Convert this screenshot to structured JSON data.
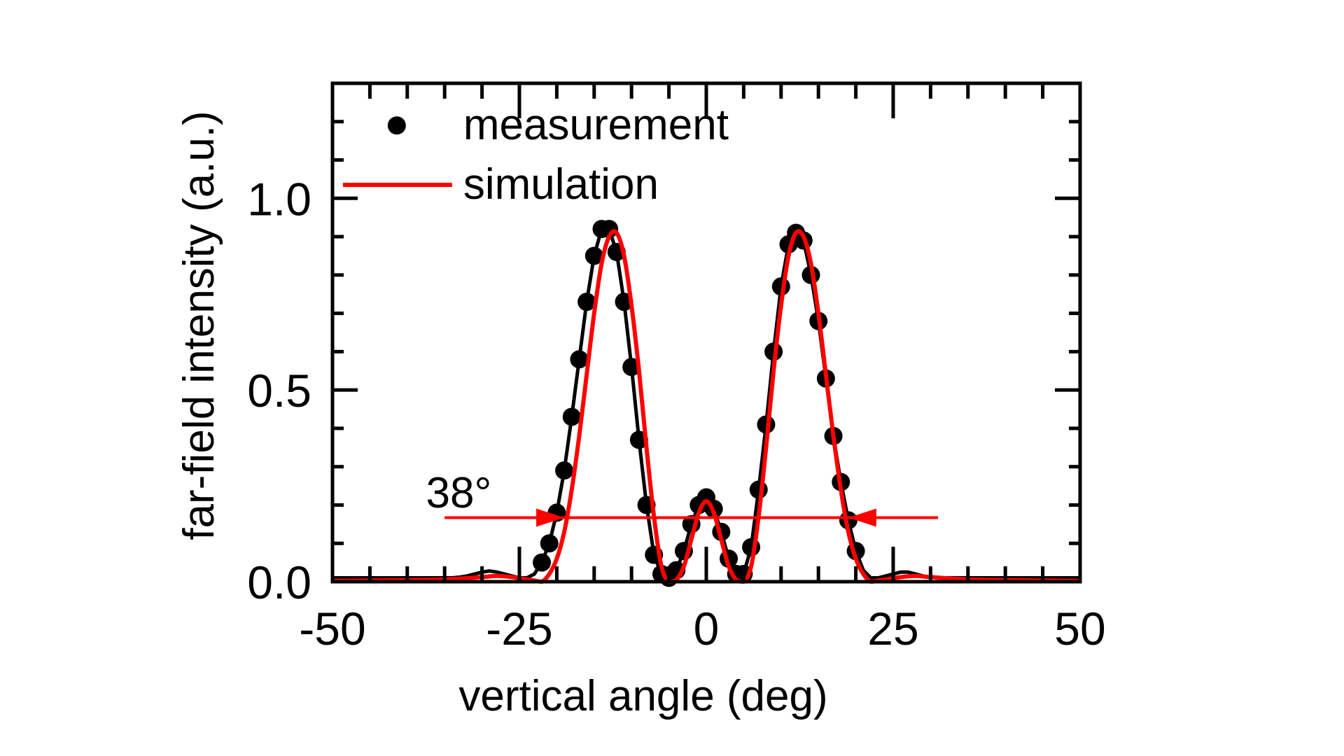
{
  "chart_data": {
    "type": "scatter",
    "xlabel": "vertical angle (deg)",
    "ylabel": "far-field intensity (a.u.)",
    "xlim": [
      -50,
      50
    ],
    "ylim": [
      0,
      1.3
    ],
    "xticks": [
      -50,
      -25,
      0,
      25,
      50
    ],
    "xtick_labels": [
      "-50",
      "-25",
      "0",
      "25",
      "50"
    ],
    "yticks": [
      0,
      0.5,
      1.0
    ],
    "ytick_labels": [
      "0.0",
      "0.5",
      "1.0"
    ],
    "grid": false,
    "legend_placement": "top-left",
    "series": [
      {
        "name": "measurement",
        "style": "markers",
        "color": "#000000",
        "x": [
          -50,
          -49,
          -48,
          -47,
          -46,
          -45,
          -44,
          -43,
          -42,
          -41,
          -40,
          -39,
          -38,
          -37,
          -36,
          -35,
          -34,
          -33,
          -32,
          -31,
          -30,
          -29,
          -28,
          -27,
          -26,
          -25,
          -24,
          -23,
          -22,
          -21,
          -20,
          -19,
          -18,
          -17,
          -16,
          -15,
          -14,
          -13,
          -12,
          -11,
          -10,
          -9,
          -8,
          -7,
          -6,
          -5,
          -4,
          -3,
          -2,
          -1,
          0,
          1,
          2,
          3,
          4,
          5,
          6,
          7,
          8,
          9,
          10,
          11,
          12,
          13,
          14,
          15,
          16,
          17,
          18,
          19,
          20,
          21,
          22,
          23,
          24,
          25,
          26,
          27,
          28,
          29,
          30,
          31,
          32,
          33,
          34,
          35,
          36,
          37,
          38,
          39,
          40,
          41,
          42,
          43,
          44,
          45,
          46,
          47,
          48,
          49,
          50
        ],
        "y": [
          0.01,
          0.01,
          0.01,
          0.01,
          0.01,
          0.01,
          0.01,
          0.01,
          0.01,
          0.01,
          0.01,
          0.01,
          0.01,
          0.01,
          0.01,
          0.01,
          0.01,
          0.012,
          0.015,
          0.02,
          0.025,
          0.028,
          0.025,
          0.02,
          0.015,
          0.01,
          0.01,
          0.02,
          0.05,
          0.1,
          0.18,
          0.29,
          0.43,
          0.58,
          0.73,
          0.85,
          0.92,
          0.92,
          0.86,
          0.73,
          0.56,
          0.37,
          0.2,
          0.07,
          0.02,
          0.01,
          0.03,
          0.08,
          0.15,
          0.2,
          0.22,
          0.19,
          0.13,
          0.06,
          0.02,
          0.02,
          0.09,
          0.24,
          0.41,
          0.6,
          0.77,
          0.88,
          0.91,
          0.89,
          0.8,
          0.68,
          0.53,
          0.38,
          0.26,
          0.16,
          0.08,
          0.03,
          0.01,
          0.01,
          0.015,
          0.02,
          0.025,
          0.025,
          0.02,
          0.015,
          0.012,
          0.01,
          0.01,
          0.01,
          0.01,
          0.01,
          0.01,
          0.01,
          0.01,
          0.01,
          0.01,
          0.01,
          0.01,
          0.01,
          0.01,
          0.01,
          0.01,
          0.01,
          0.01,
          0.01,
          0.01
        ]
      },
      {
        "name": "simulation",
        "style": "line",
        "color": "#ff0000",
        "x": [
          -50,
          -45,
          -40,
          -35,
          -30,
          -28,
          -26,
          -24,
          -23,
          -22,
          -21,
          -20,
          -19,
          -18,
          -17,
          -16,
          -15,
          -14,
          -13,
          -12,
          -11,
          -10,
          -9,
          -8,
          -7,
          -6,
          -5,
          -4,
          -3,
          -2,
          -1,
          0,
          1,
          2,
          3,
          4,
          5,
          6,
          7,
          8,
          9,
          10,
          11,
          12,
          13,
          14,
          15,
          16,
          17,
          18,
          19,
          20,
          21,
          22,
          23,
          24,
          26,
          28,
          30,
          35,
          40,
          45,
          50
        ],
        "y": [
          0.002,
          0.003,
          0.004,
          0.006,
          0.012,
          0.015,
          0.012,
          0.006,
          0.003,
          0.0,
          0.02,
          0.06,
          0.13,
          0.24,
          0.38,
          0.54,
          0.7,
          0.83,
          0.9,
          0.91,
          0.85,
          0.72,
          0.55,
          0.35,
          0.17,
          0.04,
          0.0,
          0.005,
          0.04,
          0.11,
          0.18,
          0.21,
          0.18,
          0.11,
          0.04,
          0.005,
          0.0,
          0.04,
          0.17,
          0.35,
          0.55,
          0.72,
          0.85,
          0.91,
          0.9,
          0.83,
          0.7,
          0.54,
          0.38,
          0.24,
          0.13,
          0.06,
          0.02,
          0.0,
          0.003,
          0.006,
          0.012,
          0.015,
          0.012,
          0.006,
          0.004,
          0.003,
          0.002
        ]
      }
    ],
    "annotations": [
      {
        "text": "38°",
        "x": -27,
        "y": 0.23,
        "arrow_from": -35,
        "arrow_to": 31,
        "arrow_y": 0.167,
        "arrow_tips": [
          -19,
          19
        ],
        "color": "#ff0000"
      }
    ]
  }
}
